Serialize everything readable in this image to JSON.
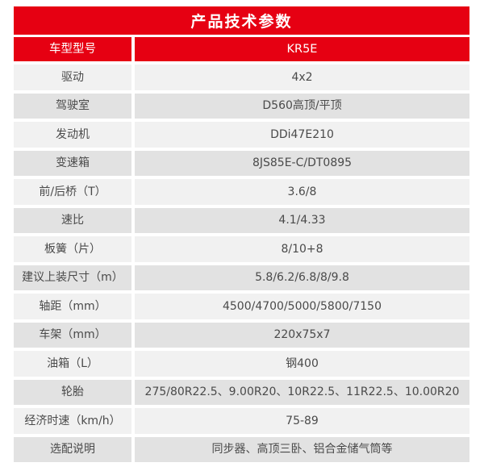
{
  "colors": {
    "accent_red": "#e60012",
    "row_light": "#f1f1f1",
    "row_dark": "#e2e2e2",
    "body_text": "#4a4a4a"
  },
  "header": {
    "title": "产品技术参数"
  },
  "table": {
    "model_row": {
      "label": "车型型号",
      "value": "KR5E"
    },
    "rows": [
      {
        "label": "驱动",
        "value": "4x2"
      },
      {
        "label": "驾驶室",
        "value": "D560高顶/平顶"
      },
      {
        "label": "发动机",
        "value": "DDi47E210"
      },
      {
        "label": "变速箱",
        "value": "8JS85E-C/DT0895"
      },
      {
        "label": "前/后桥（T）",
        "value": "3.6/8"
      },
      {
        "label": "速比",
        "value": "4.1/4.33"
      },
      {
        "label": "板簧（片）",
        "value": "8/10+8"
      },
      {
        "label": "建议上装尺寸（m）",
        "value": "5.8/6.2/6.8/8/9.8"
      },
      {
        "label": "轴距（mm）",
        "value": "4500/4700/5000/5800/7150"
      },
      {
        "label": "车架（mm）",
        "value": "220x75x7"
      },
      {
        "label": "油箱（L）",
        "value": "钢400"
      },
      {
        "label": "轮胎",
        "value": "275/80R22.5、9.00R20、10R22.5、11R22.5、10.00R20"
      },
      {
        "label": "经济时速（km/h）",
        "value": "75-89"
      },
      {
        "label": "选配说明",
        "value": "同步器、高顶三卧、铝合金储气筒等"
      }
    ]
  }
}
